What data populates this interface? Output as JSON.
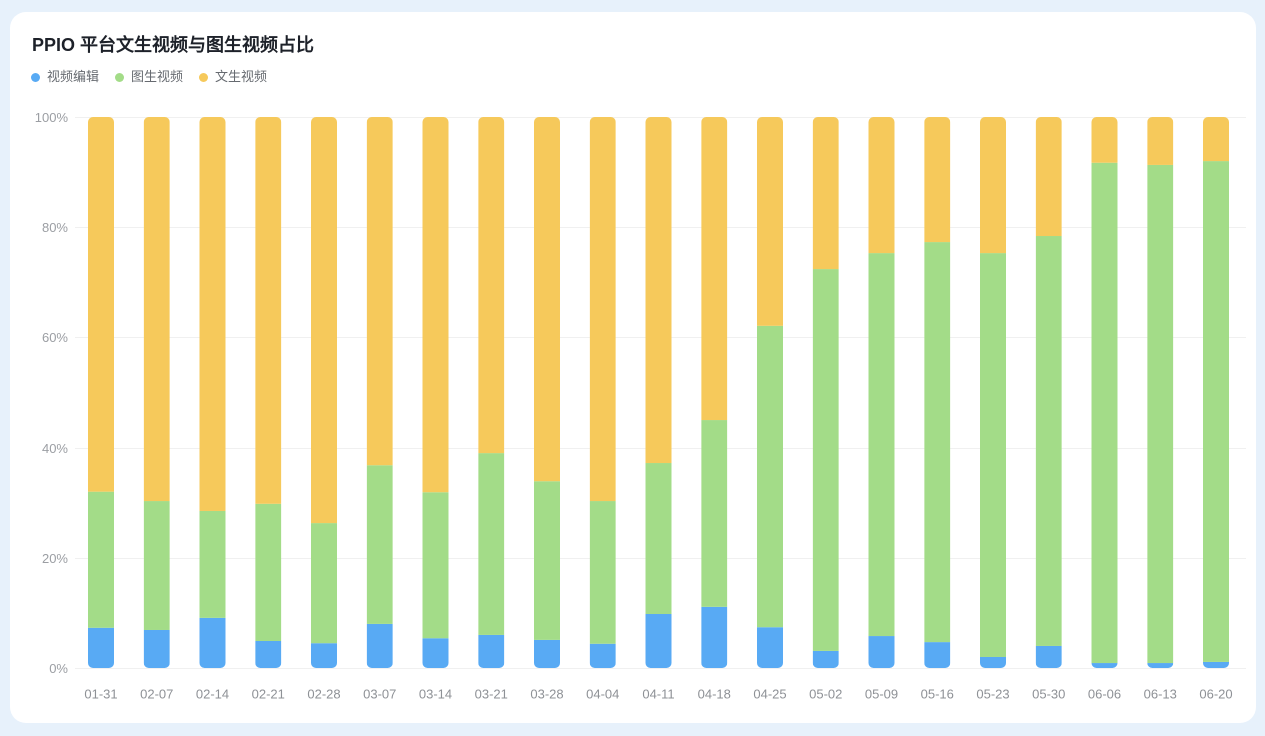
{
  "colors": {
    "page_background": "#e7f1fb",
    "card_background": "#ffffff"
  },
  "chart_data": {
    "type": "bar",
    "stacked": true,
    "normalized": true,
    "title": "PPIO 平台文生视频与图生视频占比",
    "legend_position": "top-left",
    "grid": true,
    "ylim": [
      0,
      100
    ],
    "y_ticks": [
      "0%",
      "20%",
      "40%",
      "60%",
      "80%",
      "100%"
    ],
    "categories": [
      "01-31",
      "02-07",
      "02-14",
      "02-21",
      "02-28",
      "03-07",
      "03-14",
      "03-21",
      "03-28",
      "04-04",
      "04-11",
      "04-18",
      "04-25",
      "05-02",
      "05-09",
      "05-16",
      "05-23",
      "05-30",
      "06-06",
      "06-13",
      "06-20"
    ],
    "series": [
      {
        "name": "视频编辑",
        "color": "#58aaf4",
        "values": [
          7.3,
          6.9,
          9.1,
          4.9,
          4.5,
          8.0,
          5.4,
          6.0,
          5.1,
          4.4,
          9.8,
          11.1,
          7.4,
          3.1,
          5.8,
          4.7,
          2.0,
          4.0,
          0.9,
          0.9,
          1.1
        ]
      },
      {
        "name": "图生视频",
        "color": "#a3dc88",
        "values": [
          24.7,
          23.4,
          19.4,
          24.9,
          21.8,
          28.8,
          26.5,
          33.0,
          28.8,
          25.9,
          27.4,
          33.9,
          54.7,
          69.3,
          69.5,
          72.6,
          73.3,
          74.4,
          90.8,
          90.4,
          90.9
        ]
      },
      {
        "name": "文生视频",
        "color": "#f6c95b",
        "values": [
          68.0,
          69.7,
          71.5,
          70.2,
          73.7,
          63.2,
          68.1,
          61.0,
          66.1,
          69.7,
          62.8,
          55.0,
          37.9,
          27.6,
          24.7,
          22.7,
          24.7,
          21.6,
          8.3,
          8.7,
          8.0
        ]
      }
    ]
  }
}
